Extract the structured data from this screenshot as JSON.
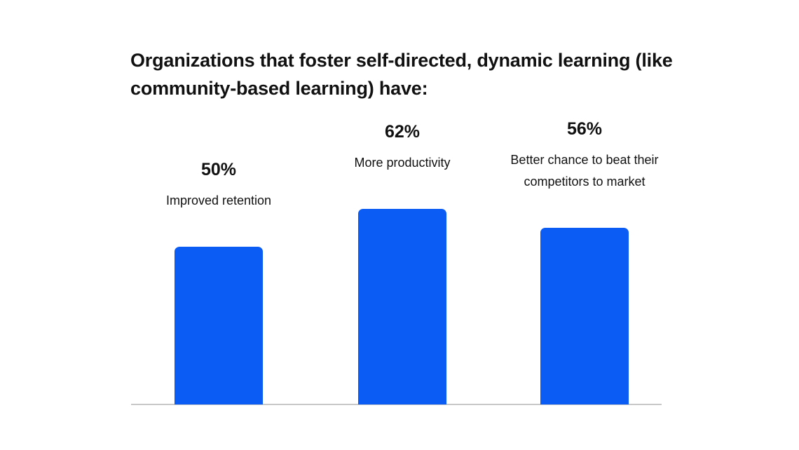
{
  "chart_data": {
    "type": "bar",
    "title": "Organizations that foster self-directed, dynamic learning (like community-based learning) have:",
    "categories": [
      "Improved retention",
      "More productivity",
      "Better chance to beat their competitors to market"
    ],
    "values": [
      50,
      62,
      56
    ],
    "value_labels": [
      "50%",
      "62%",
      "56%"
    ],
    "ylim": [
      0,
      70
    ],
    "grid": false,
    "bar_color": "#0a5cf5",
    "axis_color": "#c8c8c8"
  }
}
